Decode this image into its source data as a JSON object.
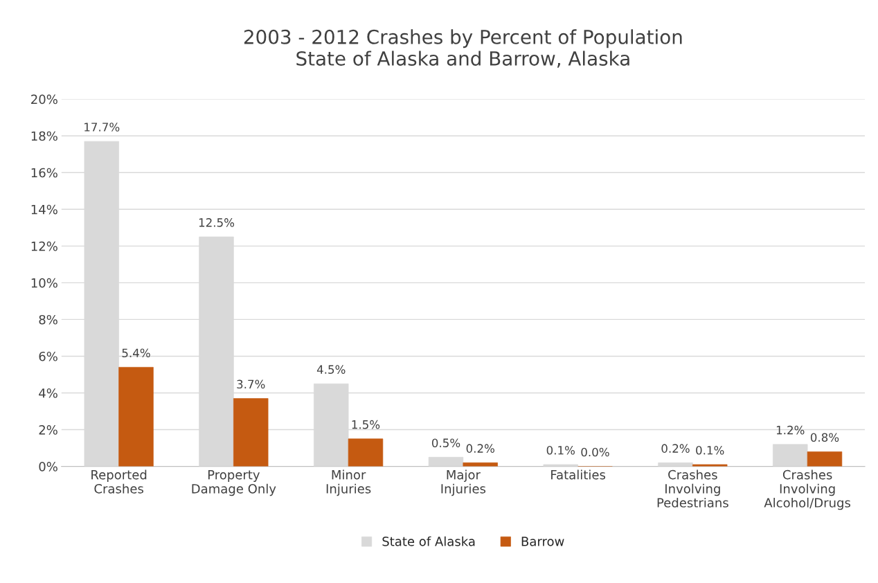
{
  "chart_data": {
    "type": "bar",
    "title": "2003 - 2012 Crashes by Percent of Population\nState of Alaska and Barrow, Alaska",
    "categories": [
      "Reported\nCrashes",
      "Property\nDamage Only",
      "Minor\nInjuries",
      "Major\nInjuries",
      "Fatalities",
      "Crashes\nInvolving\nPedestrians",
      "Crashes\nInvolving\nAlcohol/Drugs"
    ],
    "series": [
      {
        "name": "State of Alaska",
        "color": "#d9d9d9",
        "values": [
          17.7,
          12.5,
          4.5,
          0.5,
          0.1,
          0.2,
          1.2
        ],
        "value_labels": [
          "17.7%",
          "12.5%",
          "4.5%",
          "0.5%",
          "0.1%",
          "0.2%",
          "1.2%"
        ]
      },
      {
        "name": "Barrow",
        "color": "#c55a11",
        "values": [
          5.4,
          3.7,
          1.5,
          0.2,
          0.0,
          0.1,
          0.8
        ],
        "value_labels": [
          "5.4%",
          "3.7%",
          "1.5%",
          "0.2%",
          "0.0%",
          "0.1%",
          "0.8%"
        ]
      }
    ],
    "ylim": [
      0,
      20
    ],
    "yticks": [
      {
        "value": 0,
        "label": "0%"
      },
      {
        "value": 2,
        "label": "2%"
      },
      {
        "value": 4,
        "label": "4%"
      },
      {
        "value": 6,
        "label": "6%"
      },
      {
        "value": 8,
        "label": "8%"
      },
      {
        "value": 10,
        "label": "10%"
      },
      {
        "value": 12,
        "label": "12%"
      },
      {
        "value": 14,
        "label": "14%"
      },
      {
        "value": 16,
        "label": "16%"
      },
      {
        "value": 18,
        "label": "18%"
      },
      {
        "value": 20,
        "label": "20%"
      }
    ],
    "grid": "y",
    "legend": "bottom"
  }
}
